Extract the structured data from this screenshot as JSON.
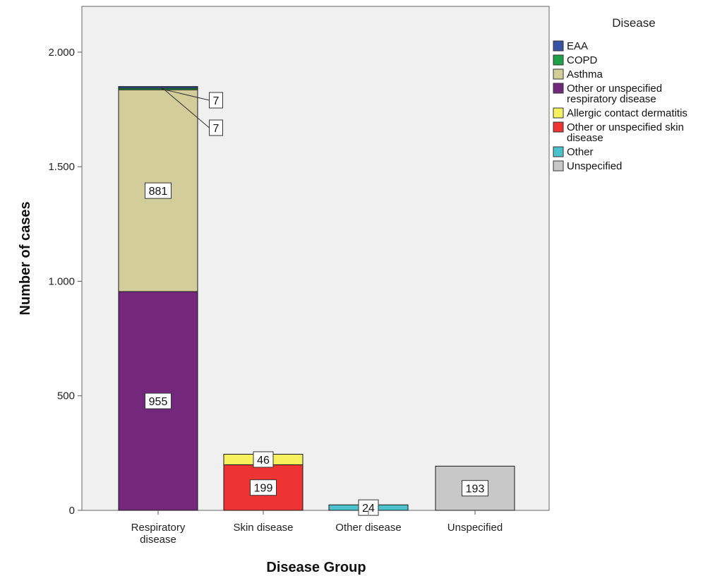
{
  "chart_data": {
    "type": "bar",
    "stacked": true,
    "title": "",
    "xlabel": "Disease Group",
    "ylabel": "Number of cases",
    "ylim": [
      0,
      2200
    ],
    "y_ticks": [
      0,
      500,
      1000,
      1500,
      2000
    ],
    "y_tick_labels": [
      "0",
      "500",
      "1.000",
      "1.500",
      "2.000"
    ],
    "categories": [
      "Respiratory\ndisease",
      "Skin disease",
      "Other disease",
      "Unspecified"
    ],
    "legend_title": "Disease",
    "legend_position": "right",
    "grid": false,
    "plot_background": "#f0f0f0",
    "series": [
      {
        "name": "EAA",
        "color": "#3953a4",
        "values": [
          7,
          0,
          0,
          0
        ]
      },
      {
        "name": "COPD",
        "color": "#1fa24a",
        "values": [
          7,
          0,
          0,
          0
        ]
      },
      {
        "name": "Asthma",
        "color": "#d3cd9a",
        "values": [
          881,
          0,
          0,
          0
        ]
      },
      {
        "name": "Other or unspecified\nrespiratory disease",
        "color": "#73287c",
        "values": [
          955,
          0,
          0,
          0
        ]
      },
      {
        "name": "Allergic contact dermatitis",
        "color": "#f7f15d",
        "values": [
          0,
          46,
          0,
          0
        ]
      },
      {
        "name": "Other or unspecified skin\ndisease",
        "color": "#ee3333",
        "values": [
          0,
          199,
          0,
          0
        ]
      },
      {
        "name": "Other",
        "color": "#4cc2cc",
        "values": [
          0,
          0,
          24,
          0
        ]
      },
      {
        "name": "Unspecified",
        "color": "#c8c8c8",
        "values": [
          0,
          0,
          0,
          193
        ]
      }
    ],
    "stack_order_bottom_to_top": [
      "Other or unspecified\nrespiratory disease",
      "Asthma",
      "COPD",
      "EAA",
      "Other or unspecified skin\ndisease",
      "Allergic contact dermatitis",
      "Other",
      "Unspecified"
    ],
    "data_labels": [
      {
        "category": 0,
        "series": "Other or unspecified\nrespiratory disease",
        "text": "955"
      },
      {
        "category": 0,
        "series": "Asthma",
        "text": "881"
      },
      {
        "category": 0,
        "series": "COPD",
        "text": "7",
        "callout": true
      },
      {
        "category": 0,
        "series": "EAA",
        "text": "7",
        "callout": true
      },
      {
        "category": 1,
        "series": "Other or unspecified skin\ndisease",
        "text": "199"
      },
      {
        "category": 1,
        "series": "Allergic contact dermatitis",
        "text": "46"
      },
      {
        "category": 2,
        "series": "Other",
        "text": "24"
      },
      {
        "category": 3,
        "series": "Unspecified",
        "text": "193"
      }
    ]
  }
}
